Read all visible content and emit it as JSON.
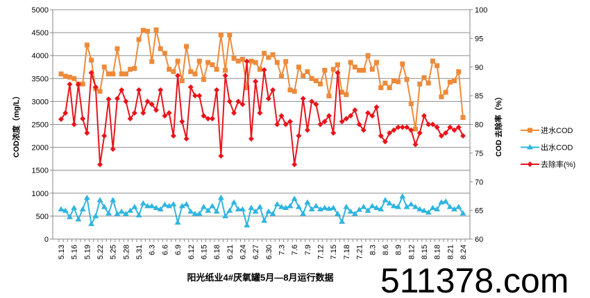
{
  "chart_data": {
    "type": "line",
    "title": "阳光纸业4#厌氧罐5月—8月运行数据",
    "ylabel": "COD浓度（mg/L）",
    "y2label": "COD 去除率（%）",
    "ylim": [
      0,
      5000
    ],
    "yticks": [
      0,
      500,
      1000,
      1500,
      2000,
      2500,
      3000,
      3500,
      4000,
      4500,
      5000
    ],
    "y2lim": [
      60,
      100
    ],
    "y2ticks": [
      60,
      65,
      70,
      75,
      80,
      85,
      90,
      95,
      100
    ],
    "grid": true,
    "legend_position": "right",
    "xtick_labels": [
      "5.13",
      "5.16",
      "5.19",
      "5.22",
      "5.25",
      "5.28",
      "5.31",
      "6.3",
      "6.6",
      "6.9",
      "6.12",
      "6.15",
      "6.18",
      "6.21",
      "6.24",
      "6.27",
      "6.30",
      "7.3",
      "7.6",
      "7.9",
      "7.12",
      "7.15",
      "7.18",
      "7.21",
      "8.3",
      "8.6",
      "8.9",
      "8.12",
      "8.15",
      "8.18",
      "8.21",
      "8.24"
    ],
    "xtick_every": 3,
    "series": [
      {
        "name": "进水COD",
        "axis": "left",
        "color": "#ED8A3A",
        "marker": "square",
        "values": [
          3600,
          3550,
          3530,
          3500,
          3380,
          3380,
          4230,
          3900,
          3280,
          3220,
          3750,
          3600,
          3600,
          4150,
          3600,
          3600,
          3700,
          3720,
          4350,
          4550,
          4530,
          3870,
          4560,
          4150,
          4050,
          3700,
          3650,
          3880,
          3450,
          4200,
          3650,
          3600,
          3880,
          3480,
          3850,
          3800,
          3700,
          4450,
          3680,
          4450,
          3940,
          3880,
          3920,
          3300,
          3880,
          3850,
          3700,
          4050,
          3960,
          4020,
          3850,
          3550,
          3870,
          3250,
          3220,
          3750,
          3560,
          3650,
          3500,
          3450,
          3380,
          3680,
          3120,
          3700,
          3800,
          3200,
          3150,
          3850,
          3750,
          3680,
          3680,
          4000,
          3700,
          3850,
          3300,
          3400,
          3300,
          3450,
          3430,
          3820,
          3480,
          2950,
          2400,
          3380,
          3520,
          3400,
          3880,
          3780,
          3100,
          3200,
          3420,
          3450,
          3650,
          2650
        ]
      },
      {
        "name": "出水COD",
        "axis": "left",
        "color": "#2FB5DE",
        "marker": "triangle",
        "values": [
          650,
          620,
          480,
          680,
          430,
          650,
          900,
          330,
          500,
          850,
          700,
          560,
          850,
          550,
          600,
          550,
          620,
          700,
          520,
          780,
          720,
          720,
          680,
          650,
          750,
          720,
          760,
          360,
          720,
          760,
          600,
          550,
          550,
          700,
          620,
          720,
          600,
          900,
          500,
          620,
          800,
          650,
          650,
          300,
          680,
          600,
          700,
          400,
          600,
          550,
          760,
          700,
          680,
          720,
          880,
          700,
          550,
          800,
          650,
          720,
          650,
          680,
          660,
          680,
          550,
          380,
          700,
          600,
          550,
          640,
          700,
          620,
          720,
          680,
          650,
          850,
          780,
          720,
          700,
          930,
          700,
          760,
          700,
          650,
          620,
          580,
          680,
          650,
          800,
          820,
          700,
          650,
          700,
          560
        ]
      },
      {
        "name": "去除率(%)",
        "axis": "right",
        "color": "#E8141B",
        "marker": "diamond",
        "values": [
          80.9,
          82,
          87,
          80,
          87,
          81,
          78.5,
          89,
          86.5,
          73,
          78,
          84.4,
          75.7,
          84.5,
          86,
          84,
          81,
          82,
          86,
          82,
          84,
          83.5,
          82.5,
          86,
          81.5,
          82,
          78,
          88.5,
          80.5,
          77.5,
          86.5,
          85,
          85,
          81.5,
          81,
          81,
          86,
          74.5,
          88.5,
          84,
          82,
          84,
          83.5,
          91,
          77.5,
          87.5,
          82,
          89.5,
          84.5,
          86,
          80,
          81.5,
          80,
          80.5,
          73,
          78,
          84.5,
          79,
          84,
          83.5,
          80,
          80.5,
          81.5,
          78.5,
          89,
          80.5,
          81,
          81.5,
          82.5,
          80,
          79,
          82,
          81.5,
          83,
          78,
          77,
          78.5,
          79,
          79.5,
          79.5,
          79.5,
          79,
          76.5,
          78.5,
          81.5,
          80,
          80,
          79.5,
          78,
          78.5,
          79.5,
          79,
          79.5,
          78
        ]
      }
    ]
  },
  "watermark": "511378.com",
  "colors": {
    "grid": "#8C8C8C",
    "axis": "#868686"
  }
}
